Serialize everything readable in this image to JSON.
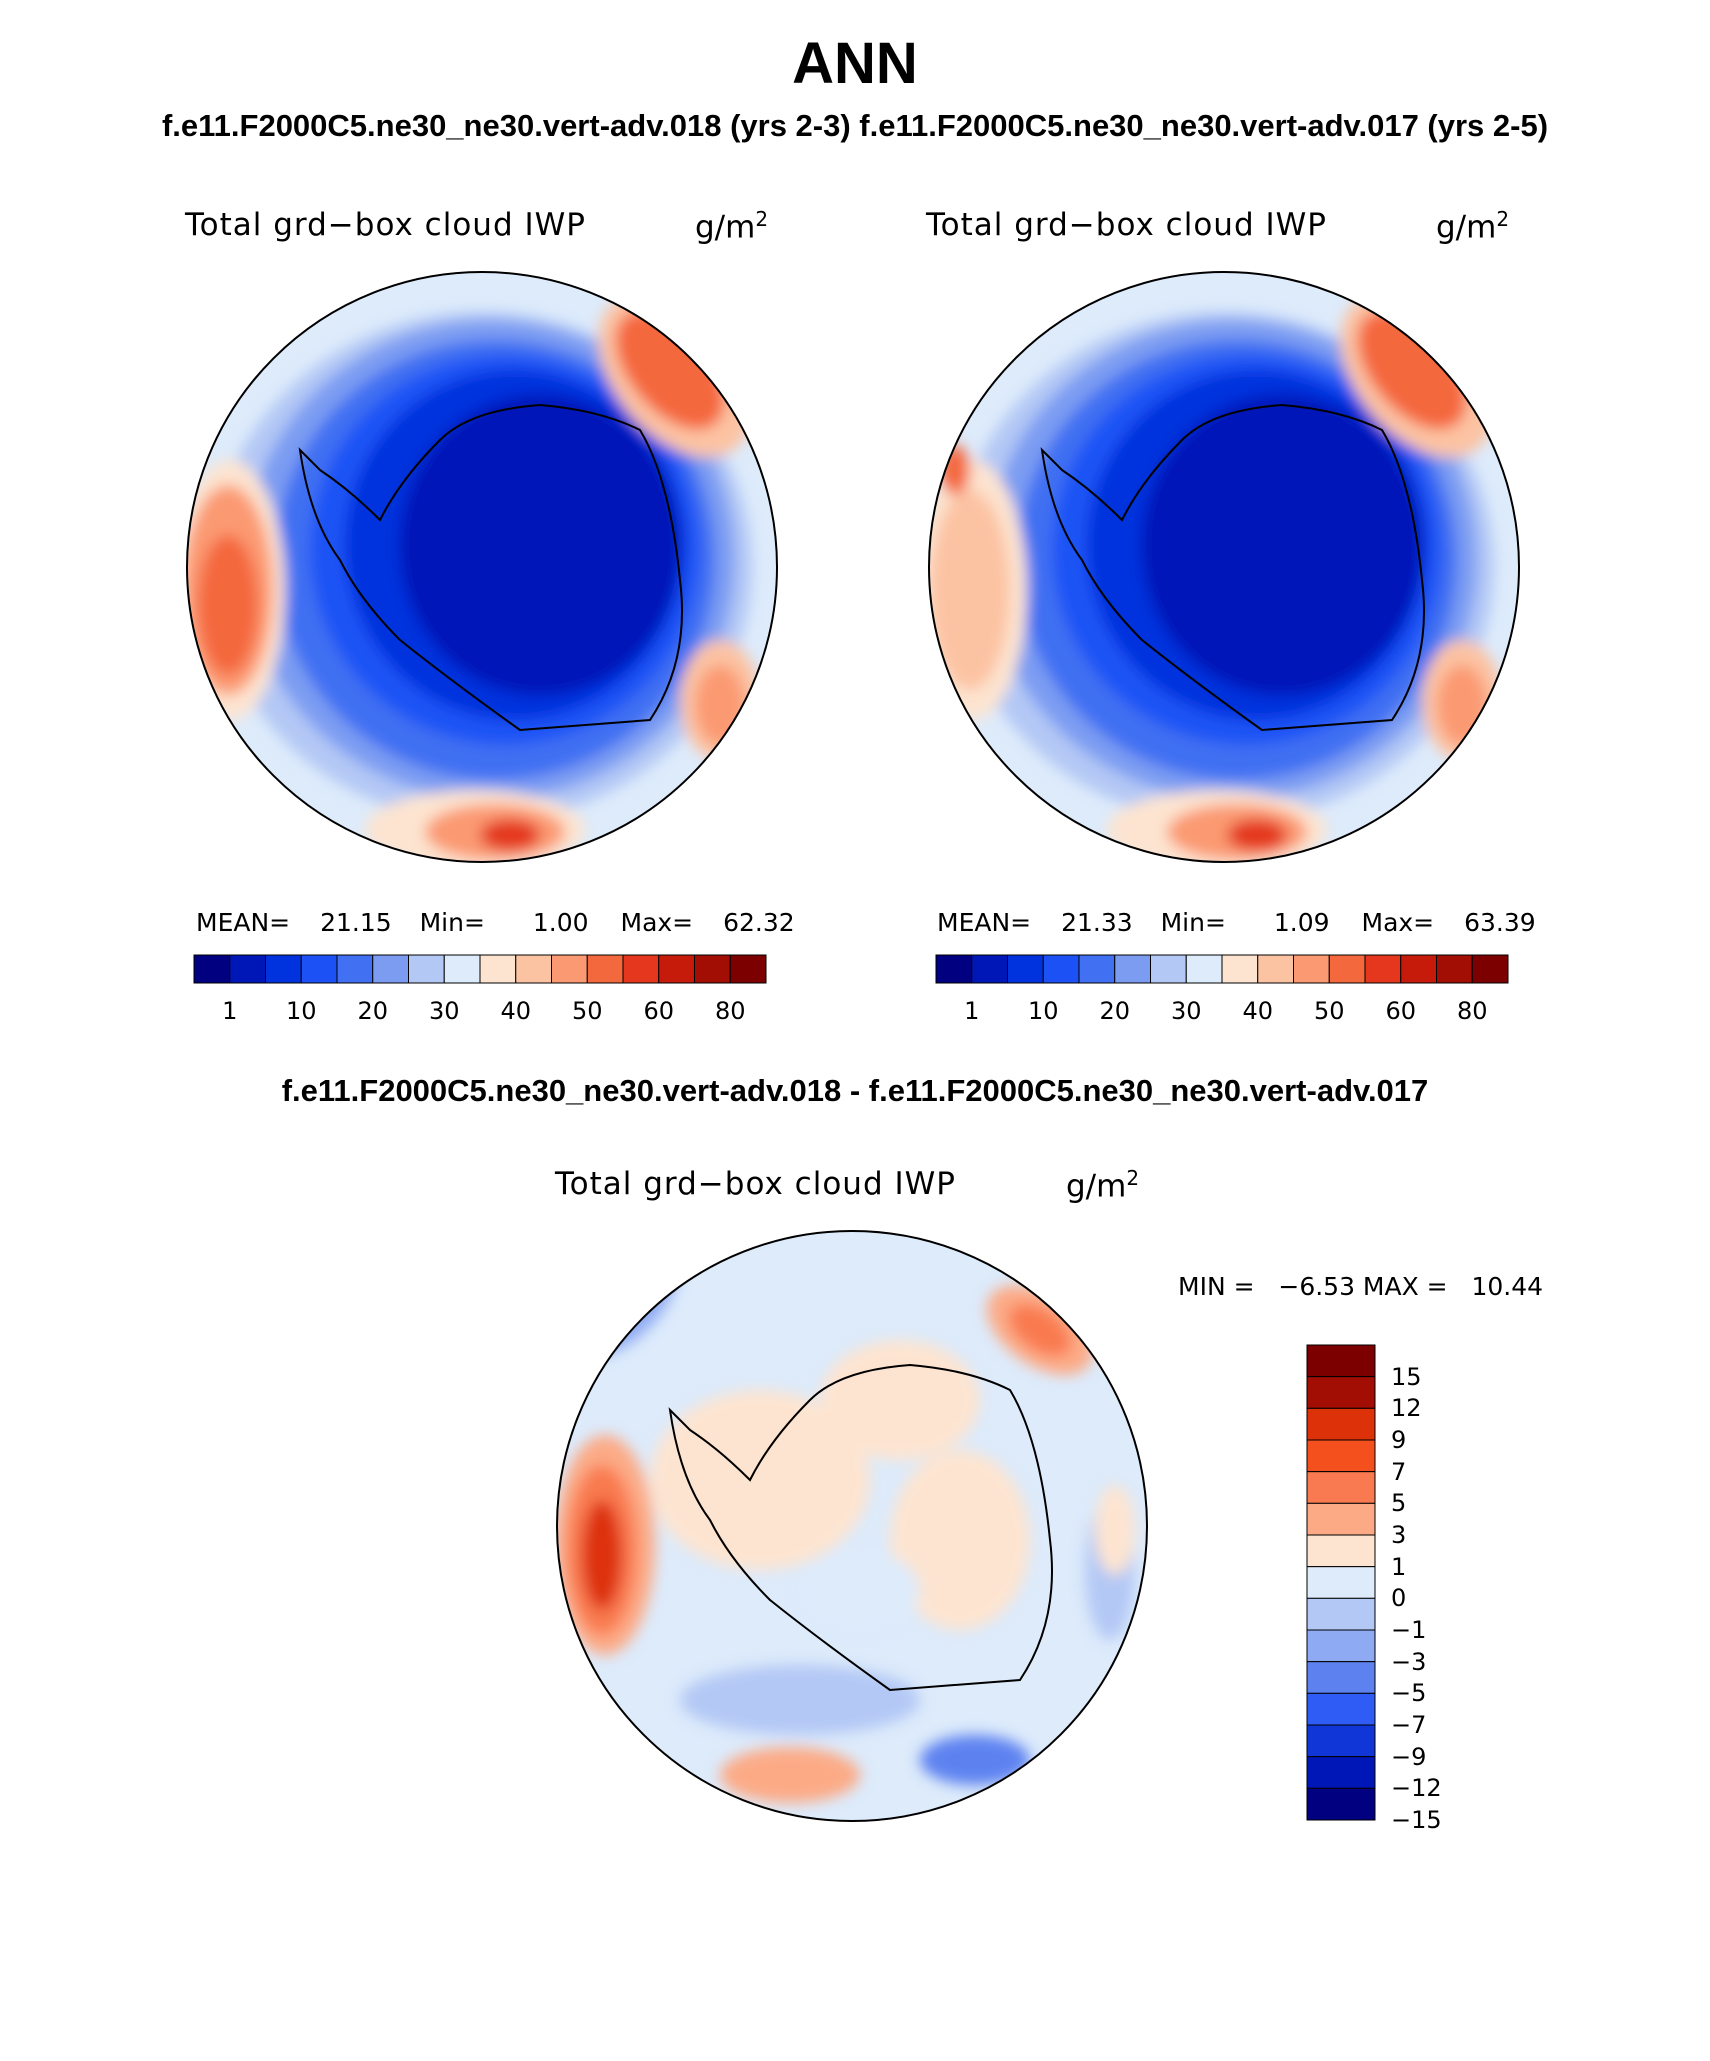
{
  "main_title": "ANN",
  "case_titles": "f.e11.F2000C5.ne30_ne30.vert-adv.018 (yrs 2-3) f.e11.F2000C5.ne30_ne30.vert-adv.017 (yrs 2-5)",
  "diff_title": "f.e11.F2000C5.ne30_ne30.vert-adv.018 - f.e11.F2000C5.ne30_ne30.vert-adv.017",
  "panels": [
    {
      "field": "Total grd−box cloud IWP",
      "units_base": "g/m",
      "units_exp": "2",
      "mean_label": "MEAN=",
      "mean": "21.15",
      "min_label": "Min=",
      "min": "1.00",
      "max_label": "Max=",
      "max": "62.32"
    },
    {
      "field": "Total grd−box cloud IWP",
      "units_base": "g/m",
      "units_exp": "2",
      "mean_label": "MEAN=",
      "mean": "21.33",
      "min_label": "Min=",
      "min": "1.09",
      "max_label": "Max=",
      "max": "63.39"
    }
  ],
  "abs_colorbar": {
    "colors": [
      "#000080",
      "#0017b8",
      "#0033dd",
      "#1c52f5",
      "#4170f2",
      "#7c9cf2",
      "#b3c8f5",
      "#ddebfb",
      "#fde4d0",
      "#fcc3a3",
      "#fb9a72",
      "#f4683d",
      "#e4371d",
      "#c61a0b",
      "#a20d04",
      "#7d0000"
    ],
    "ticks": [
      "1",
      "10",
      "20",
      "30",
      "40",
      "50",
      "60",
      "80"
    ]
  },
  "diff_panel": {
    "field": "Total grd−box cloud IWP",
    "units_base": "g/m",
    "units_exp": "2",
    "minmax": "MIN =   −6.53 MAX =   10.44"
  },
  "diff_colorbar": {
    "colors": [
      "#7d0000",
      "#a20d04",
      "#dd3209",
      "#f4501e",
      "#f97a50",
      "#fcaa86",
      "#fde4d0",
      "#ddebfb",
      "#b3c8f5",
      "#8eaaf3",
      "#5d82f0",
      "#2f5cf4",
      "#1036d8",
      "#0017b8",
      "#000080"
    ],
    "ticks": [
      "15",
      "12",
      "9",
      "7",
      "5",
      "3",
      "1",
      "0",
      "−1",
      "−3",
      "−5",
      "−7",
      "−9",
      "−12",
      "−15"
    ]
  },
  "icons": [
    "south-polar-stereographic-map"
  ]
}
